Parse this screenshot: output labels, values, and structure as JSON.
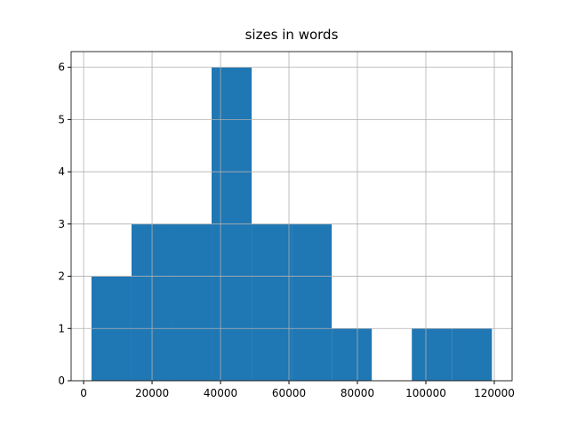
{
  "chart_data": {
    "type": "histogram",
    "title": "sizes in words",
    "bins": [
      2300,
      14000,
      25700,
      37400,
      49100,
      60800,
      72500,
      84200,
      95900,
      107600,
      119300
    ],
    "counts": [
      2,
      3,
      3,
      6,
      3,
      3,
      1,
      0,
      1,
      1
    ],
    "color": "#1f77b4",
    "xlim": [
      -3650,
      125200
    ],
    "xticks": [
      0,
      20000,
      40000,
      60000,
      80000,
      100000,
      120000
    ],
    "ylim": [
      0,
      6.3
    ],
    "yticks": [
      0,
      1,
      2,
      3,
      4,
      5,
      6
    ],
    "grid": true
  }
}
